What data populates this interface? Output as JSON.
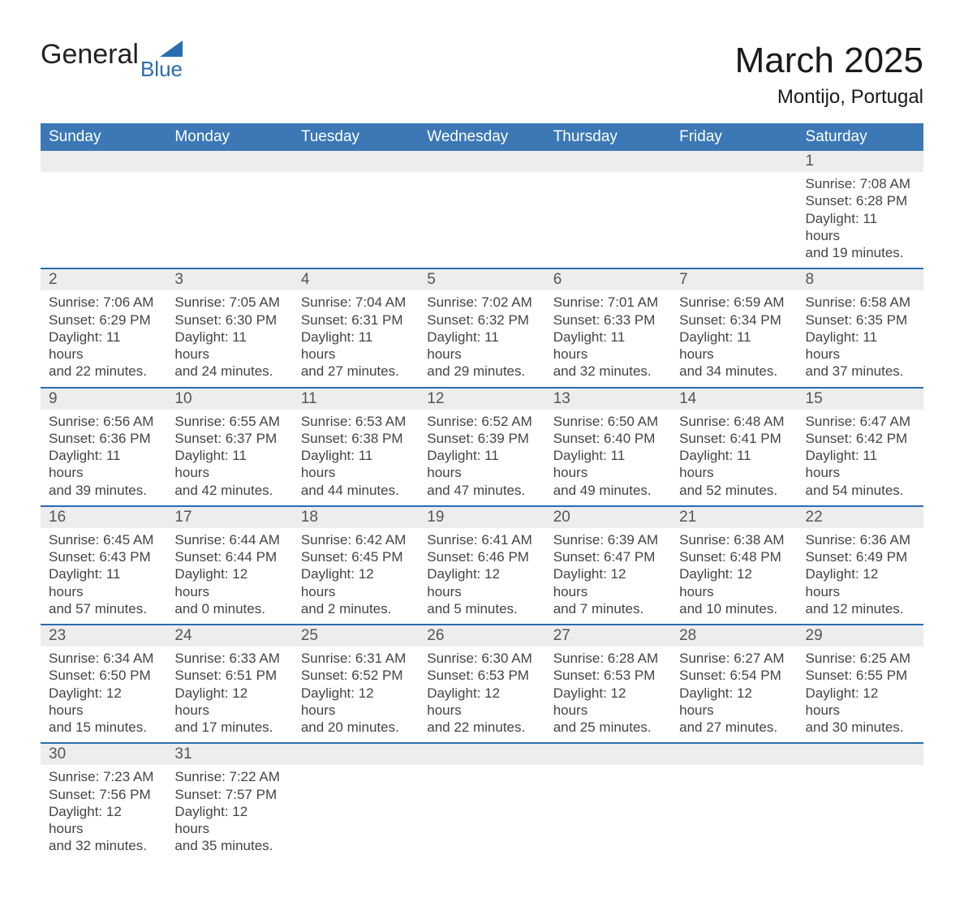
{
  "brand": {
    "name_part1": "General",
    "name_part2": "Blue"
  },
  "title": "March 2025",
  "location": "Montijo, Portugal",
  "colors": {
    "header_bg": "#3b78b5",
    "header_text": "#ffffff",
    "daynum_bg": "#ededed",
    "row_divider": "#2a6cb0",
    "body_text": "#444444",
    "brand_blue": "#2a6cb0"
  },
  "typography": {
    "title_fontsize": 44,
    "location_fontsize": 24,
    "dow_fontsize": 19,
    "daynum_fontsize": 19,
    "detail_fontsize": 17
  },
  "days_of_week": [
    "Sunday",
    "Monday",
    "Tuesday",
    "Wednesday",
    "Thursday",
    "Friday",
    "Saturday"
  ],
  "weeks": [
    [
      null,
      null,
      null,
      null,
      null,
      null,
      {
        "d": "1",
        "sr": "Sunrise: 7:08 AM",
        "ss": "Sunset: 6:28 PM",
        "dl1": "Daylight: 11 hours",
        "dl2": "and 19 minutes."
      }
    ],
    [
      {
        "d": "2",
        "sr": "Sunrise: 7:06 AM",
        "ss": "Sunset: 6:29 PM",
        "dl1": "Daylight: 11 hours",
        "dl2": "and 22 minutes."
      },
      {
        "d": "3",
        "sr": "Sunrise: 7:05 AM",
        "ss": "Sunset: 6:30 PM",
        "dl1": "Daylight: 11 hours",
        "dl2": "and 24 minutes."
      },
      {
        "d": "4",
        "sr": "Sunrise: 7:04 AM",
        "ss": "Sunset: 6:31 PM",
        "dl1": "Daylight: 11 hours",
        "dl2": "and 27 minutes."
      },
      {
        "d": "5",
        "sr": "Sunrise: 7:02 AM",
        "ss": "Sunset: 6:32 PM",
        "dl1": "Daylight: 11 hours",
        "dl2": "and 29 minutes."
      },
      {
        "d": "6",
        "sr": "Sunrise: 7:01 AM",
        "ss": "Sunset: 6:33 PM",
        "dl1": "Daylight: 11 hours",
        "dl2": "and 32 minutes."
      },
      {
        "d": "7",
        "sr": "Sunrise: 6:59 AM",
        "ss": "Sunset: 6:34 PM",
        "dl1": "Daylight: 11 hours",
        "dl2": "and 34 minutes."
      },
      {
        "d": "8",
        "sr": "Sunrise: 6:58 AM",
        "ss": "Sunset: 6:35 PM",
        "dl1": "Daylight: 11 hours",
        "dl2": "and 37 minutes."
      }
    ],
    [
      {
        "d": "9",
        "sr": "Sunrise: 6:56 AM",
        "ss": "Sunset: 6:36 PM",
        "dl1": "Daylight: 11 hours",
        "dl2": "and 39 minutes."
      },
      {
        "d": "10",
        "sr": "Sunrise: 6:55 AM",
        "ss": "Sunset: 6:37 PM",
        "dl1": "Daylight: 11 hours",
        "dl2": "and 42 minutes."
      },
      {
        "d": "11",
        "sr": "Sunrise: 6:53 AM",
        "ss": "Sunset: 6:38 PM",
        "dl1": "Daylight: 11 hours",
        "dl2": "and 44 minutes."
      },
      {
        "d": "12",
        "sr": "Sunrise: 6:52 AM",
        "ss": "Sunset: 6:39 PM",
        "dl1": "Daylight: 11 hours",
        "dl2": "and 47 minutes."
      },
      {
        "d": "13",
        "sr": "Sunrise: 6:50 AM",
        "ss": "Sunset: 6:40 PM",
        "dl1": "Daylight: 11 hours",
        "dl2": "and 49 minutes."
      },
      {
        "d": "14",
        "sr": "Sunrise: 6:48 AM",
        "ss": "Sunset: 6:41 PM",
        "dl1": "Daylight: 11 hours",
        "dl2": "and 52 minutes."
      },
      {
        "d": "15",
        "sr": "Sunrise: 6:47 AM",
        "ss": "Sunset: 6:42 PM",
        "dl1": "Daylight: 11 hours",
        "dl2": "and 54 minutes."
      }
    ],
    [
      {
        "d": "16",
        "sr": "Sunrise: 6:45 AM",
        "ss": "Sunset: 6:43 PM",
        "dl1": "Daylight: 11 hours",
        "dl2": "and 57 minutes."
      },
      {
        "d": "17",
        "sr": "Sunrise: 6:44 AM",
        "ss": "Sunset: 6:44 PM",
        "dl1": "Daylight: 12 hours",
        "dl2": "and 0 minutes."
      },
      {
        "d": "18",
        "sr": "Sunrise: 6:42 AM",
        "ss": "Sunset: 6:45 PM",
        "dl1": "Daylight: 12 hours",
        "dl2": "and 2 minutes."
      },
      {
        "d": "19",
        "sr": "Sunrise: 6:41 AM",
        "ss": "Sunset: 6:46 PM",
        "dl1": "Daylight: 12 hours",
        "dl2": "and 5 minutes."
      },
      {
        "d": "20",
        "sr": "Sunrise: 6:39 AM",
        "ss": "Sunset: 6:47 PM",
        "dl1": "Daylight: 12 hours",
        "dl2": "and 7 minutes."
      },
      {
        "d": "21",
        "sr": "Sunrise: 6:38 AM",
        "ss": "Sunset: 6:48 PM",
        "dl1": "Daylight: 12 hours",
        "dl2": "and 10 minutes."
      },
      {
        "d": "22",
        "sr": "Sunrise: 6:36 AM",
        "ss": "Sunset: 6:49 PM",
        "dl1": "Daylight: 12 hours",
        "dl2": "and 12 minutes."
      }
    ],
    [
      {
        "d": "23",
        "sr": "Sunrise: 6:34 AM",
        "ss": "Sunset: 6:50 PM",
        "dl1": "Daylight: 12 hours",
        "dl2": "and 15 minutes."
      },
      {
        "d": "24",
        "sr": "Sunrise: 6:33 AM",
        "ss": "Sunset: 6:51 PM",
        "dl1": "Daylight: 12 hours",
        "dl2": "and 17 minutes."
      },
      {
        "d": "25",
        "sr": "Sunrise: 6:31 AM",
        "ss": "Sunset: 6:52 PM",
        "dl1": "Daylight: 12 hours",
        "dl2": "and 20 minutes."
      },
      {
        "d": "26",
        "sr": "Sunrise: 6:30 AM",
        "ss": "Sunset: 6:53 PM",
        "dl1": "Daylight: 12 hours",
        "dl2": "and 22 minutes."
      },
      {
        "d": "27",
        "sr": "Sunrise: 6:28 AM",
        "ss": "Sunset: 6:53 PM",
        "dl1": "Daylight: 12 hours",
        "dl2": "and 25 minutes."
      },
      {
        "d": "28",
        "sr": "Sunrise: 6:27 AM",
        "ss": "Sunset: 6:54 PM",
        "dl1": "Daylight: 12 hours",
        "dl2": "and 27 minutes."
      },
      {
        "d": "29",
        "sr": "Sunrise: 6:25 AM",
        "ss": "Sunset: 6:55 PM",
        "dl1": "Daylight: 12 hours",
        "dl2": "and 30 minutes."
      }
    ],
    [
      {
        "d": "30",
        "sr": "Sunrise: 7:23 AM",
        "ss": "Sunset: 7:56 PM",
        "dl1": "Daylight: 12 hours",
        "dl2": "and 32 minutes."
      },
      {
        "d": "31",
        "sr": "Sunrise: 7:22 AM",
        "ss": "Sunset: 7:57 PM",
        "dl1": "Daylight: 12 hours",
        "dl2": "and 35 minutes."
      },
      null,
      null,
      null,
      null,
      null
    ]
  ]
}
